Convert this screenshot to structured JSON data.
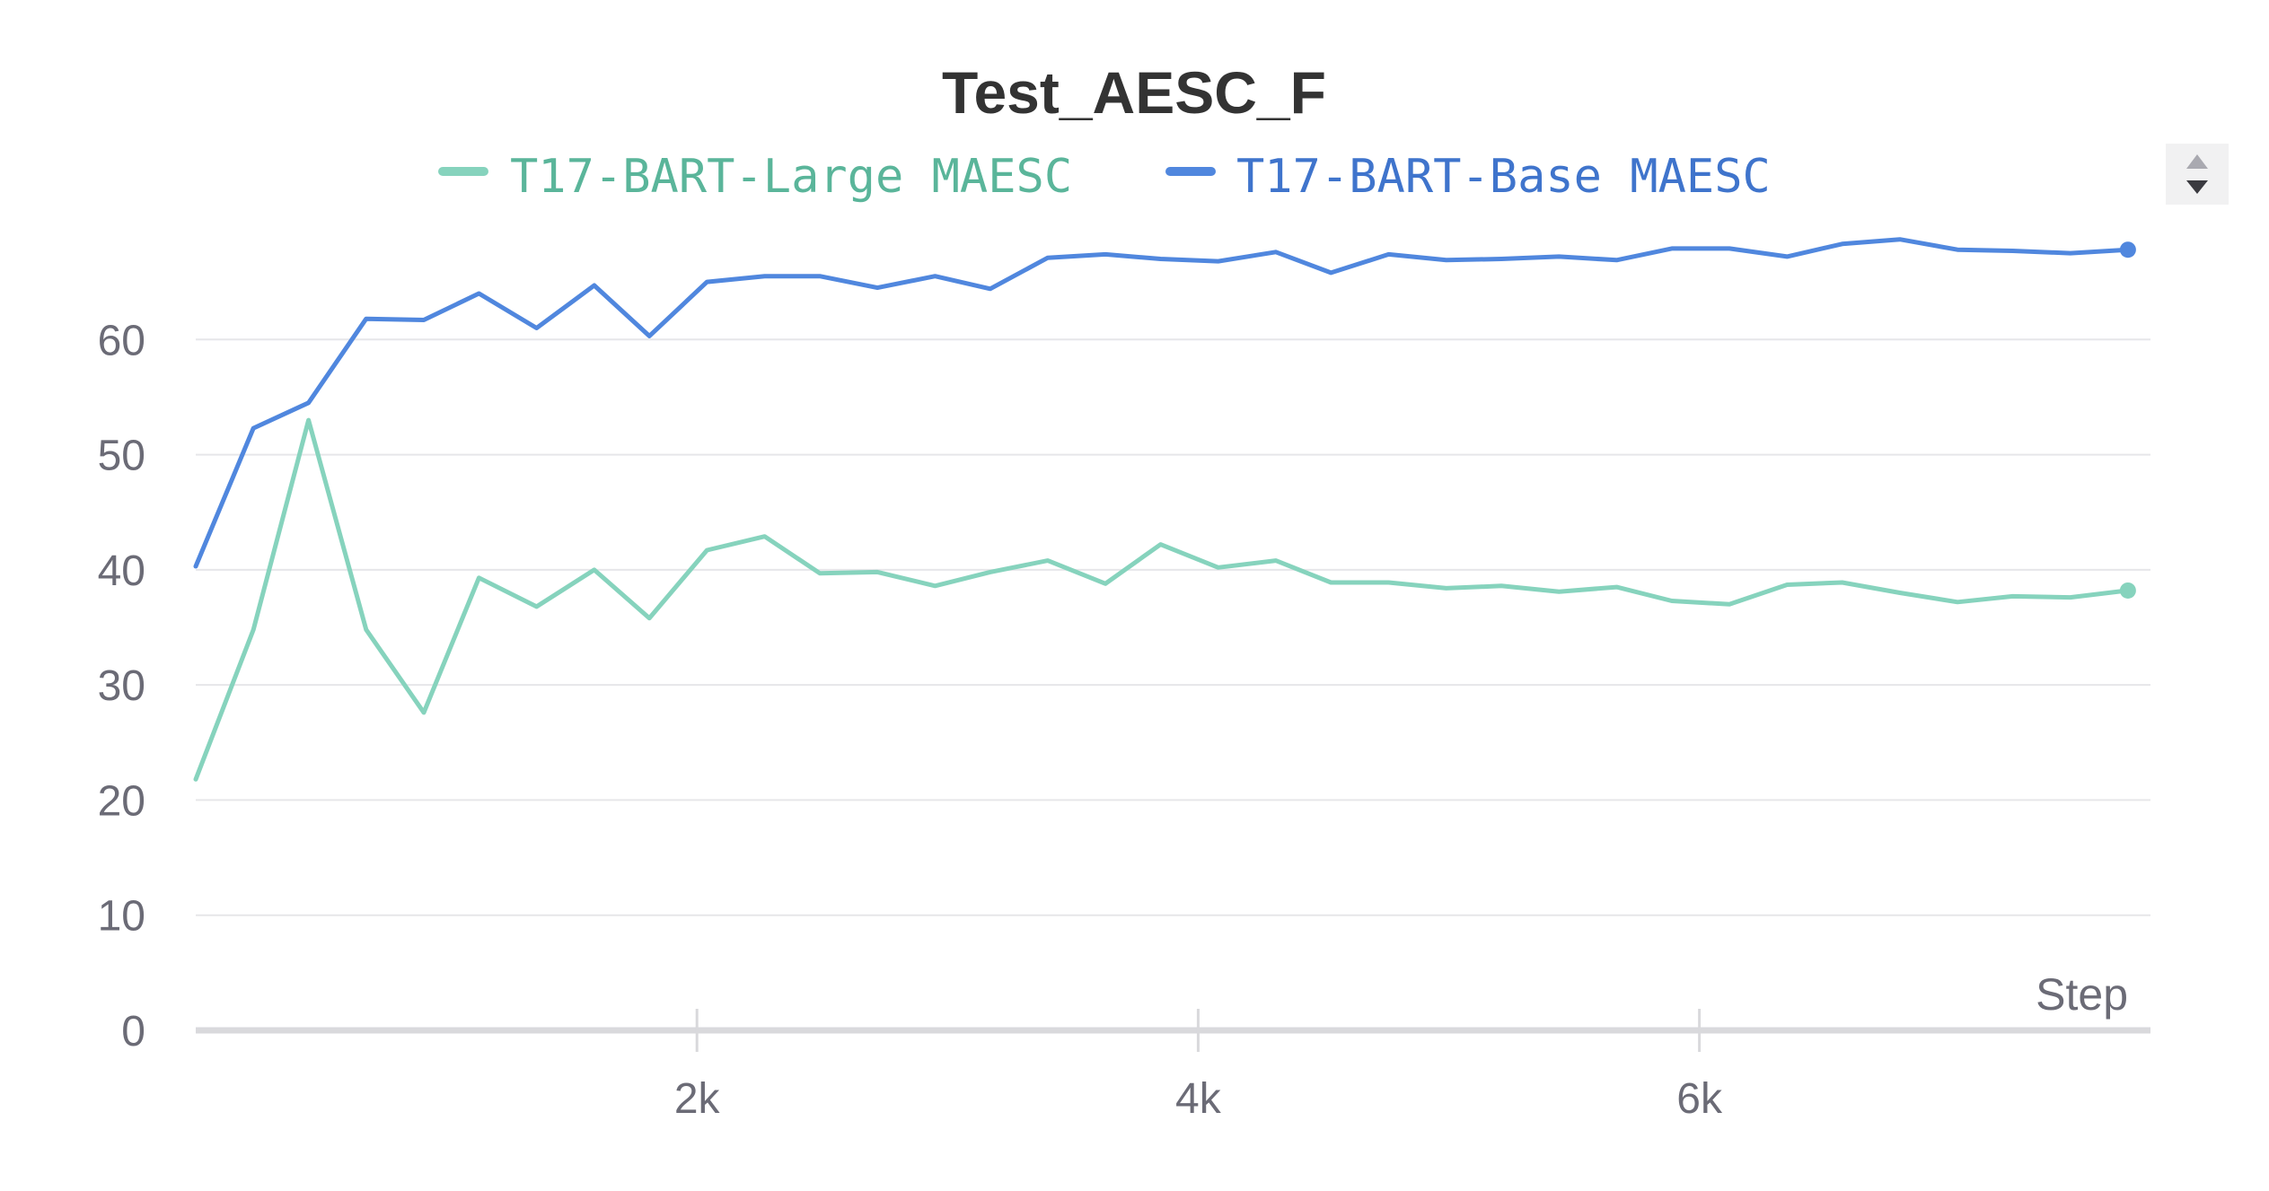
{
  "chart_data": {
    "type": "line",
    "title": "Test_AESC_F",
    "xlabel": "Step",
    "ylabel": "",
    "xlim": [
      0,
      7800
    ],
    "ylim": [
      0,
      70
    ],
    "x_ticks": [
      2000,
      4000,
      6000
    ],
    "x_tick_labels": [
      "2k",
      "4k",
      "6k"
    ],
    "y_ticks": [
      0,
      10,
      20,
      30,
      40,
      50,
      60
    ],
    "y_tick_labels": [
      "0",
      "10",
      "20",
      "30",
      "40",
      "50",
      "60"
    ],
    "grid": true,
    "legend_position": "top-center",
    "x": [
      0,
      230,
      450,
      680,
      910,
      1130,
      1360,
      1590,
      1810,
      2040,
      2270,
      2490,
      2720,
      2950,
      3170,
      3400,
      3630,
      3850,
      4080,
      4310,
      4530,
      4760,
      4990,
      5210,
      5440,
      5670,
      5890,
      6120,
      6350,
      6570,
      6800,
      7030,
      7250,
      7480,
      7710
    ],
    "series": [
      {
        "name": "T17-BART-Large MAESC",
        "color": "#86d3bd",
        "text_color": "#5ab59a",
        "values": [
          21.8,
          34.8,
          53.0,
          34.8,
          27.6,
          39.3,
          36.8,
          40.0,
          35.8,
          41.7,
          42.9,
          39.7,
          39.8,
          38.6,
          39.8,
          40.8,
          38.8,
          42.2,
          40.2,
          40.8,
          38.9,
          38.9,
          38.4,
          38.6,
          38.1,
          38.5,
          37.3,
          37.0,
          38.7,
          38.9,
          38.0,
          37.2,
          37.7,
          37.6,
          38.2
        ]
      },
      {
        "name": "T17-BART-Base MAESC",
        "color": "#5087de",
        "text_color": "#3f74cc",
        "values": [
          40.3,
          52.3,
          54.5,
          61.8,
          61.7,
          64.0,
          61.0,
          64.7,
          60.3,
          65.0,
          65.5,
          65.5,
          64.5,
          65.5,
          64.4,
          67.1,
          67.4,
          67.0,
          66.8,
          67.6,
          65.8,
          67.4,
          66.9,
          67.0,
          67.2,
          66.9,
          67.9,
          67.9,
          67.2,
          68.3,
          68.7,
          67.8,
          67.7,
          67.5,
          67.8
        ]
      }
    ]
  },
  "colors": {
    "axis_text": "#6b6b76",
    "title_text": "#333333",
    "grid": "#e6e6e9"
  },
  "legend_control": {
    "icon": "scroll-arrows-icon"
  }
}
